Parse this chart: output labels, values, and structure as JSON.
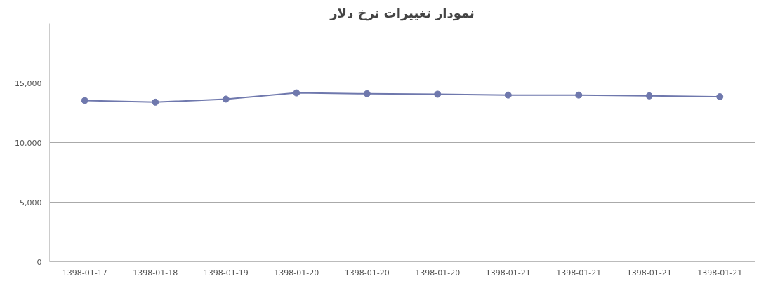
{
  "chart_data": {
    "type": "line",
    "title": "نمودار تغییرات نرخ دلار",
    "categories": [
      "1398-01-17",
      "1398-01-18",
      "1398-01-19",
      "1398-01-20",
      "1398-01-20",
      "1398-01-20",
      "1398-01-21",
      "1398-01-21",
      "1398-01-21",
      "1398-01-21"
    ],
    "series": [
      {
        "color": "#6f78ad",
        "values": [
          13530,
          13390,
          13650,
          14170,
          14100,
          14060,
          13990,
          13990,
          13920,
          13850
        ]
      }
    ],
    "ylim": [
      0,
      20000
    ],
    "yticks": [
      0,
      {
        "value": 5000,
        "label": "5,000"
      },
      {
        "value": 10000,
        "label": "10,000"
      },
      {
        "value": 15000,
        "label": "15,000"
      }
    ],
    "grid": "y",
    "marker": "circle",
    "line_style": "solid"
  }
}
